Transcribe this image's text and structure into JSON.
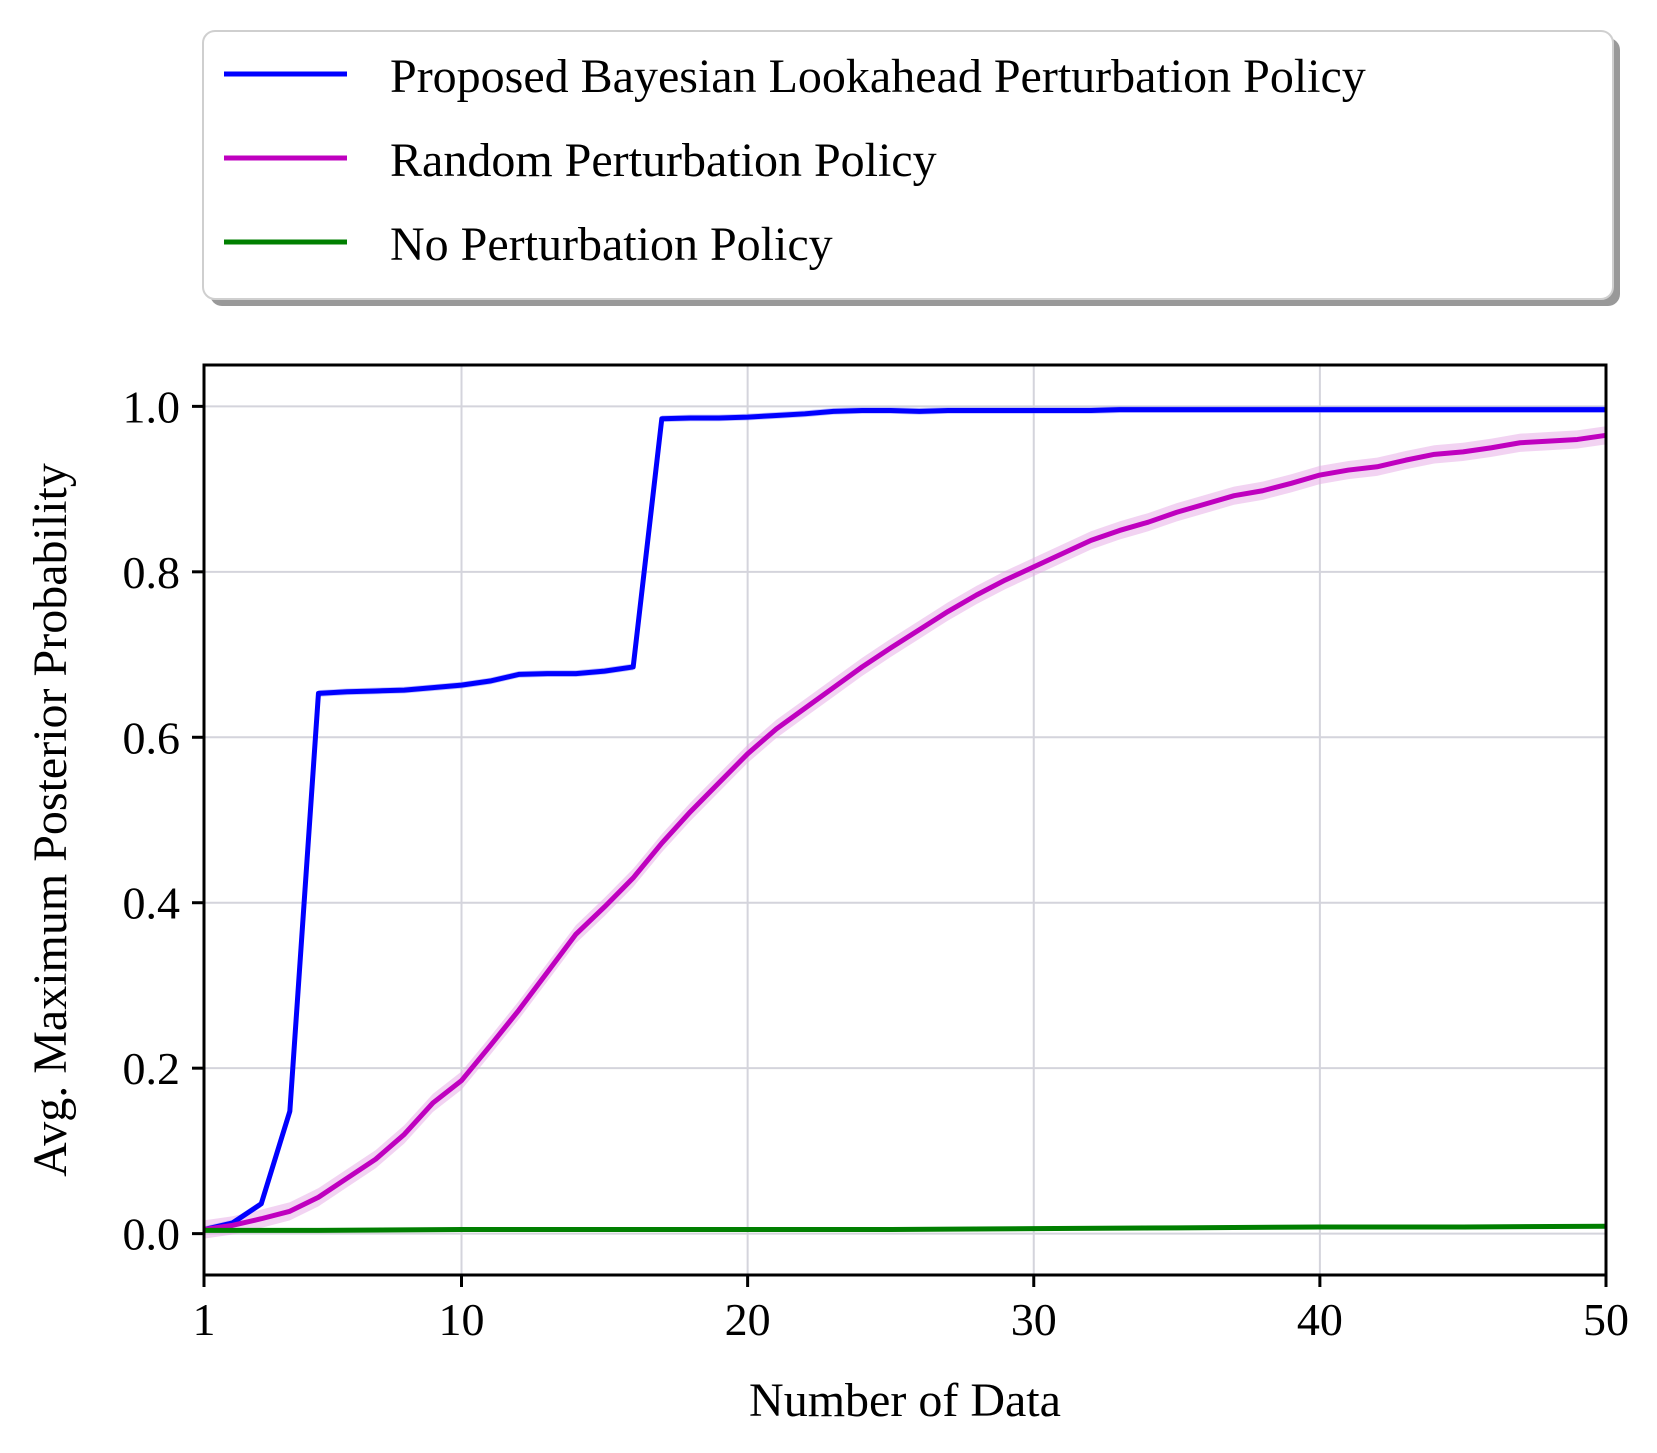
{
  "chart_data": {
    "type": "line",
    "xlabel": "Number of Data",
    "ylabel": "Avg. Maximum Posterior Probability",
    "xlim": [
      1,
      50
    ],
    "ylim": [
      -0.05,
      1.05
    ],
    "xticks": [
      1,
      10,
      20,
      30,
      40,
      50
    ],
    "yticks": [
      0.0,
      0.2,
      0.4,
      0.6,
      0.8,
      1.0
    ],
    "xtick_labels": [
      "1",
      "10",
      "20",
      "30",
      "40",
      "50"
    ],
    "ytick_labels": [
      "0.0",
      "0.2",
      "0.4",
      "0.6",
      "0.8",
      "1.0"
    ],
    "grid": true,
    "legend_position": "top",
    "series": [
      {
        "name": "Proposed Bayesian Lookahead Perturbation Policy",
        "color": "#0000ff",
        "band_color": "#8080ff",
        "band": 0.004,
        "x": [
          1,
          2,
          3,
          4,
          5,
          6,
          7,
          8,
          9,
          10,
          11,
          12,
          13,
          14,
          15,
          16,
          17,
          18,
          19,
          20,
          21,
          22,
          23,
          24,
          25,
          26,
          27,
          28,
          29,
          30,
          31,
          32,
          33,
          34,
          35,
          36,
          37,
          38,
          39,
          40,
          41,
          42,
          43,
          44,
          45,
          46,
          47,
          48,
          49,
          50
        ],
        "values": [
          0.005,
          0.013,
          0.036,
          0.148,
          0.653,
          0.655,
          0.656,
          0.657,
          0.66,
          0.663,
          0.668,
          0.676,
          0.677,
          0.677,
          0.68,
          0.685,
          0.985,
          0.986,
          0.986,
          0.987,
          0.989,
          0.991,
          0.994,
          0.995,
          0.995,
          0.994,
          0.995,
          0.995,
          0.995,
          0.995,
          0.995,
          0.995,
          0.996,
          0.996,
          0.996,
          0.996,
          0.996,
          0.996,
          0.996,
          0.996,
          0.996,
          0.996,
          0.996,
          0.996,
          0.996,
          0.996,
          0.996,
          0.996,
          0.996,
          0.996
        ]
      },
      {
        "name": "Random Perturbation Policy",
        "color": "#bf00bf",
        "band_color": "#e6a8e6",
        "band": 0.011,
        "x": [
          1,
          2,
          3,
          4,
          5,
          6,
          7,
          8,
          9,
          10,
          11,
          12,
          13,
          14,
          15,
          16,
          17,
          18,
          19,
          20,
          21,
          22,
          23,
          24,
          25,
          26,
          27,
          28,
          29,
          30,
          31,
          32,
          33,
          34,
          35,
          36,
          37,
          38,
          39,
          40,
          41,
          42,
          43,
          44,
          45,
          46,
          47,
          48,
          49,
          50
        ],
        "values": [
          0.005,
          0.01,
          0.018,
          0.027,
          0.044,
          0.067,
          0.09,
          0.12,
          0.158,
          0.185,
          0.227,
          0.27,
          0.316,
          0.362,
          0.395,
          0.43,
          0.472,
          0.51,
          0.545,
          0.58,
          0.61,
          0.635,
          0.66,
          0.685,
          0.708,
          0.73,
          0.752,
          0.772,
          0.79,
          0.806,
          0.822,
          0.838,
          0.85,
          0.86,
          0.872,
          0.882,
          0.892,
          0.898,
          0.907,
          0.917,
          0.923,
          0.927,
          0.935,
          0.942,
          0.945,
          0.95,
          0.956,
          0.958,
          0.96,
          0.965
        ]
      },
      {
        "name": "No Perturbation Policy",
        "color": "#007f00",
        "band_color": "#80bf80",
        "band": 0.001,
        "x": [
          1,
          5,
          10,
          15,
          20,
          25,
          30,
          35,
          40,
          45,
          50
        ],
        "values": [
          0.004,
          0.004,
          0.005,
          0.005,
          0.005,
          0.005,
          0.006,
          0.007,
          0.008,
          0.008,
          0.009
        ]
      }
    ]
  }
}
